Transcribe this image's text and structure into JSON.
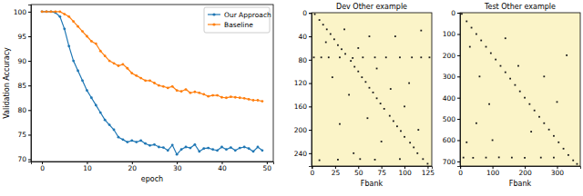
{
  "chart_data": [
    {
      "type": "line",
      "x_label": "epoch",
      "y_label": "Validation Accuracy",
      "x": [
        0,
        1,
        2,
        3,
        4,
        5,
        6,
        7,
        8,
        9,
        10,
        11,
        12,
        13,
        14,
        15,
        16,
        17,
        18,
        19,
        20,
        21,
        22,
        23,
        24,
        25,
        26,
        27,
        28,
        29,
        30,
        31,
        32,
        33,
        34,
        35,
        36,
        37,
        38,
        39,
        40,
        41,
        42,
        43,
        44,
        45,
        46,
        47,
        48,
        49
      ],
      "series": [
        {
          "name": "Our Approach",
          "color": "#1f77b4",
          "marker": "o",
          "values": [
            100,
            100,
            100,
            99.8,
            99,
            96.5,
            93,
            90,
            88,
            86,
            84,
            82.5,
            81,
            79.5,
            78,
            77,
            76,
            74.5,
            74,
            73.5,
            73.8,
            73.5,
            73.8,
            73.2,
            72.8,
            73,
            72.5,
            72.4,
            71.8,
            72.9,
            71,
            72,
            72.5,
            72.3,
            73,
            71.6,
            72.2,
            72.3,
            72,
            71.8,
            72.5,
            72,
            72.4,
            71.8,
            72.3,
            72.5,
            72.2,
            71.6,
            72.5,
            71.8
          ]
        },
        {
          "name": "Baseline",
          "color": "#ff7f0e",
          "marker": "o",
          "values": [
            100,
            100,
            100,
            100,
            100,
            99.5,
            99,
            98,
            97,
            96,
            95,
            94,
            93.5,
            92,
            91,
            90,
            89.5,
            89,
            89.3,
            88.5,
            87.5,
            87,
            86.5,
            86,
            86,
            85.5,
            85,
            84.8,
            84.5,
            84.8,
            84,
            83.8,
            84.2,
            83.5,
            83.7,
            83.5,
            83.2,
            82.8,
            83,
            83,
            82.6,
            82.5,
            82.7,
            82.6,
            82.5,
            82.4,
            82.2,
            82,
            82,
            81.8
          ]
        }
      ],
      "xlim": [
        -2.45,
        51.45
      ],
      "xticks": [
        0,
        10,
        20,
        30,
        40,
        50
      ],
      "ylim": [
        69.55,
        101.45
      ],
      "yticks": [
        70,
        75,
        80,
        85,
        90,
        95,
        100
      ],
      "legend": "upper right",
      "grid": false
    },
    {
      "type": "heatmap",
      "title": "Dev Other example",
      "x_label": "Fbank",
      "color": "#1a1a1a",
      "xlim": [
        -0.5,
        129.5
      ],
      "xticks": [
        0,
        25,
        50,
        75,
        100,
        125
      ],
      "ylim": [
        262,
        -0.5
      ],
      "yticks": [
        0,
        40,
        80,
        120,
        160,
        200,
        240
      ],
      "points": [
        [
          3,
          2
        ],
        [
          8,
          12
        ],
        [
          12,
          20
        ],
        [
          16,
          28
        ],
        [
          20,
          36
        ],
        [
          24,
          45
        ],
        [
          28,
          55
        ],
        [
          32,
          62
        ],
        [
          36,
          70
        ],
        [
          42,
          82
        ],
        [
          46,
          92
        ],
        [
          50,
          100
        ],
        [
          54,
          110
        ],
        [
          58,
          118
        ],
        [
          62,
          128
        ],
        [
          66,
          136
        ],
        [
          70,
          146
        ],
        [
          74,
          155
        ],
        [
          78,
          164
        ],
        [
          84,
          176
        ],
        [
          88,
          185
        ],
        [
          92,
          194
        ],
        [
          96,
          202
        ],
        [
          100,
          212
        ],
        [
          106,
          222
        ],
        [
          110,
          230
        ],
        [
          114,
          240
        ],
        [
          120,
          250
        ],
        [
          125,
          258
        ],
        [
          2,
          76
        ],
        [
          10,
          76
        ],
        [
          18,
          76
        ],
        [
          30,
          76
        ],
        [
          44,
          77
        ],
        [
          55,
          76
        ],
        [
          68,
          76
        ],
        [
          80,
          76
        ],
        [
          95,
          76
        ],
        [
          108,
          76
        ],
        [
          118,
          76
        ],
        [
          127,
          76
        ],
        [
          15,
          50
        ],
        [
          22,
          110
        ],
        [
          35,
          28
        ],
        [
          40,
          140
        ],
        [
          50,
          60
        ],
        [
          62,
          40
        ],
        [
          70,
          95
        ],
        [
          85,
          130
        ],
        [
          90,
          40
        ],
        [
          100,
          160
        ],
        [
          105,
          120
        ],
        [
          115,
          200
        ],
        [
          60,
          180
        ],
        [
          75,
          220
        ],
        [
          30,
          190
        ],
        [
          118,
          30
        ],
        [
          45,
          240
        ],
        [
          95,
          250
        ],
        [
          8,
          252
        ],
        [
          28,
          251
        ],
        [
          52,
          250
        ],
        [
          68,
          251
        ]
      ]
    },
    {
      "type": "heatmap",
      "title": "Test Other example",
      "x_label": "Fbank",
      "color": "#1a1a1a",
      "xlim": [
        -0.5,
        372
      ],
      "xticks": [
        0,
        100,
        200,
        300
      ],
      "ylim": [
        722,
        -0.5
      ],
      "yticks": [
        0,
        100,
        200,
        300,
        400,
        500,
        600,
        700
      ],
      "points": [
        [
          5,
          5
        ],
        [
          20,
          40
        ],
        [
          35,
          70
        ],
        [
          50,
          100
        ],
        [
          65,
          130
        ],
        [
          80,
          160
        ],
        [
          95,
          190
        ],
        [
          110,
          220
        ],
        [
          125,
          250
        ],
        [
          140,
          280
        ],
        [
          155,
          310
        ],
        [
          170,
          340
        ],
        [
          185,
          370
        ],
        [
          200,
          400
        ],
        [
          215,
          430
        ],
        [
          230,
          460
        ],
        [
          245,
          490
        ],
        [
          260,
          520
        ],
        [
          275,
          550
        ],
        [
          290,
          580
        ],
        [
          305,
          610
        ],
        [
          320,
          640
        ],
        [
          335,
          670
        ],
        [
          350,
          695
        ],
        [
          362,
          712
        ],
        [
          10,
          682
        ],
        [
          40,
          683
        ],
        [
          80,
          682
        ],
        [
          120,
          681
        ],
        [
          160,
          682
        ],
        [
          200,
          683
        ],
        [
          250,
          682
        ],
        [
          290,
          682
        ],
        [
          30,
          160
        ],
        [
          60,
          300
        ],
        [
          90,
          430
        ],
        [
          140,
          120
        ],
        [
          180,
          250
        ],
        [
          220,
          560
        ],
        [
          100,
          600
        ],
        [
          50,
          520
        ],
        [
          260,
          300
        ],
        [
          300,
          420
        ],
        [
          330,
          200
        ],
        [
          20,
          610
        ]
      ]
    }
  ]
}
